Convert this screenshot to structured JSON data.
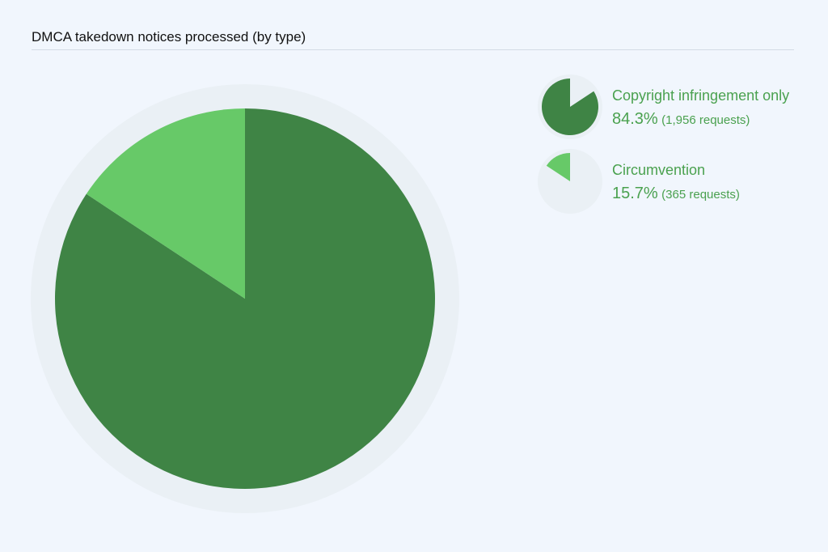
{
  "chart_data": {
    "type": "pie",
    "title": "DMCA takedown notices processed (by type)",
    "series": [
      {
        "name": "Copyright infringement only",
        "percent_label": "84.3%",
        "count_label": "(1,956 requests)",
        "value": 1956,
        "percent": 84.3,
        "color": "#3f8445"
      },
      {
        "name": "Circumvention",
        "percent_label": "15.7%",
        "count_label": "(365 requests)",
        "value": 365,
        "percent": 15.7,
        "color": "#67c968"
      }
    ],
    "legend_position": "top-right"
  },
  "colors": {
    "background": "#f1f6fd",
    "pie_track": "#eaf0f5",
    "legend_text": "#4aa14f"
  }
}
